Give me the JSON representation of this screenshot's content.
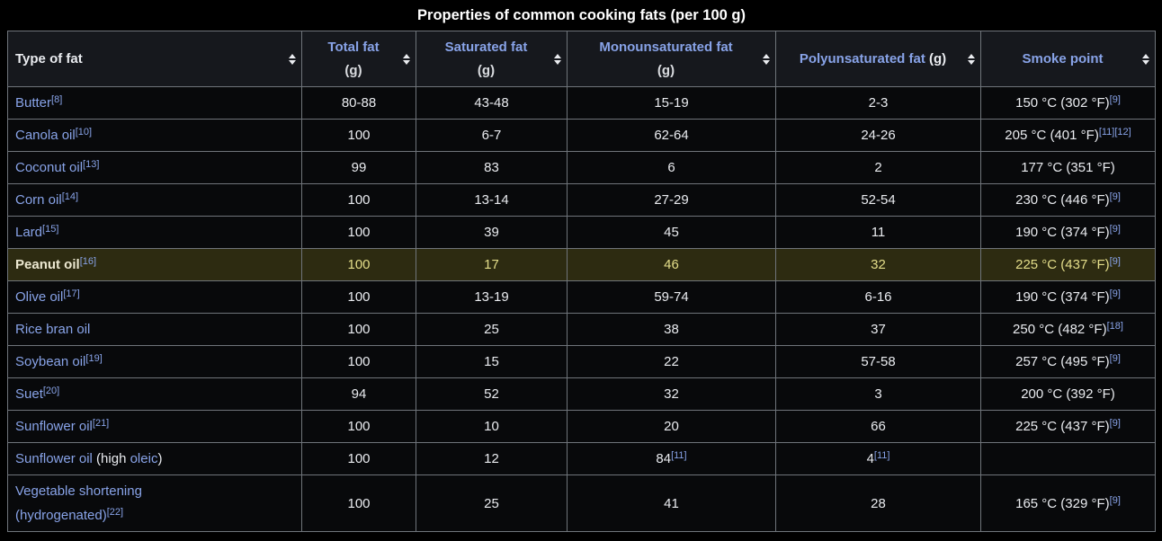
{
  "title": "Properties of common cooking fats (per 100 g)",
  "colors": {
    "page_bg": "#000000",
    "cell_bg": "#08090b",
    "header_bg": "#16181d",
    "border": "#6f747a",
    "text": "#eaecf0",
    "muted": "#dadce0",
    "link": "#88a3e8",
    "title": "#ffffff",
    "highlight_bg": "#2d2b11",
    "highlight_text": "#e4de8a",
    "highlight_label": "#ece8d1"
  },
  "icons": {
    "sort": "up-down-triangles"
  },
  "table": {
    "columns": [
      {
        "id": "type-of-fat",
        "align": "left",
        "segments": [
          {
            "t": "Type of fat",
            "s": "plain"
          }
        ]
      },
      {
        "id": "total-fat",
        "segments": [
          {
            "t": "Total fat",
            "s": "link"
          }
        ],
        "unit": "(g)"
      },
      {
        "id": "saturated-fat",
        "segments": [
          {
            "t": "Saturated fat",
            "s": "link"
          }
        ],
        "unit": "(g)"
      },
      {
        "id": "monounsaturated-fat",
        "segments": [
          {
            "t": "Monounsaturated fat",
            "s": "link"
          }
        ],
        "unit": "(g)"
      },
      {
        "id": "polyunsaturated-fat",
        "segments": [
          {
            "t": "Polyunsaturated fat",
            "s": "link"
          },
          {
            "t": " (g)",
            "s": "plain"
          }
        ]
      },
      {
        "id": "smoke-point",
        "segments": [
          {
            "t": "Smoke point",
            "s": "link"
          }
        ]
      }
    ],
    "rows": [
      {
        "highlight": false,
        "cells": [
          [
            {
              "t": "Butter",
              "s": "link"
            },
            {
              "t": "[8]",
              "s": "ref"
            }
          ],
          [
            {
              "t": "80-88",
              "s": "plain"
            }
          ],
          [
            {
              "t": "43-48",
              "s": "plain"
            }
          ],
          [
            {
              "t": "15-19",
              "s": "plain"
            }
          ],
          [
            {
              "t": "2-3",
              "s": "plain"
            }
          ],
          [
            {
              "t": "150 °C (302 °F)",
              "s": "plain"
            },
            {
              "t": "[9]",
              "s": "ref"
            }
          ]
        ]
      },
      {
        "highlight": false,
        "cells": [
          [
            {
              "t": "Canola oil",
              "s": "link"
            },
            {
              "t": "[10]",
              "s": "ref"
            }
          ],
          [
            {
              "t": "100",
              "s": "plain"
            }
          ],
          [
            {
              "t": "6-7",
              "s": "plain"
            }
          ],
          [
            {
              "t": "62-64",
              "s": "plain"
            }
          ],
          [
            {
              "t": "24-26",
              "s": "plain"
            }
          ],
          [
            {
              "t": "205 °C (401 °F)",
              "s": "plain"
            },
            {
              "t": "[11]",
              "s": "ref"
            },
            {
              "t": "[12]",
              "s": "ref"
            }
          ]
        ]
      },
      {
        "highlight": false,
        "cells": [
          [
            {
              "t": "Coconut oil",
              "s": "link"
            },
            {
              "t": "[13]",
              "s": "ref"
            }
          ],
          [
            {
              "t": "99",
              "s": "plain"
            }
          ],
          [
            {
              "t": "83",
              "s": "plain"
            }
          ],
          [
            {
              "t": "6",
              "s": "plain"
            }
          ],
          [
            {
              "t": "2",
              "s": "plain"
            }
          ],
          [
            {
              "t": "177 °C (351 °F)",
              "s": "plain"
            }
          ]
        ]
      },
      {
        "highlight": false,
        "cells": [
          [
            {
              "t": "Corn oil",
              "s": "link"
            },
            {
              "t": "[14]",
              "s": "ref"
            }
          ],
          [
            {
              "t": "100",
              "s": "plain"
            }
          ],
          [
            {
              "t": "13-14",
              "s": "plain"
            }
          ],
          [
            {
              "t": "27-29",
              "s": "plain"
            }
          ],
          [
            {
              "t": "52-54",
              "s": "plain"
            }
          ],
          [
            {
              "t": "230 °C (446 °F)",
              "s": "plain"
            },
            {
              "t": "[9]",
              "s": "ref"
            }
          ]
        ]
      },
      {
        "highlight": false,
        "cells": [
          [
            {
              "t": "Lard",
              "s": "link"
            },
            {
              "t": "[15]",
              "s": "ref"
            }
          ],
          [
            {
              "t": "100",
              "s": "plain"
            }
          ],
          [
            {
              "t": "39",
              "s": "plain"
            }
          ],
          [
            {
              "t": "45",
              "s": "plain"
            }
          ],
          [
            {
              "t": "11",
              "s": "plain"
            }
          ],
          [
            {
              "t": "190 °C (374 °F)",
              "s": "plain"
            },
            {
              "t": "[9]",
              "s": "ref"
            }
          ]
        ]
      },
      {
        "highlight": true,
        "cells": [
          [
            {
              "t": "Peanut oil",
              "s": "bold"
            },
            {
              "t": "[16]",
              "s": "ref"
            }
          ],
          [
            {
              "t": "100",
              "s": "plain"
            }
          ],
          [
            {
              "t": "17",
              "s": "plain"
            }
          ],
          [
            {
              "t": "46",
              "s": "plain"
            }
          ],
          [
            {
              "t": "32",
              "s": "plain"
            }
          ],
          [
            {
              "t": "225 °C (437 °F)",
              "s": "plain"
            },
            {
              "t": "[9]",
              "s": "ref"
            }
          ]
        ]
      },
      {
        "highlight": false,
        "cells": [
          [
            {
              "t": "Olive oil",
              "s": "link"
            },
            {
              "t": "[17]",
              "s": "ref"
            }
          ],
          [
            {
              "t": "100",
              "s": "plain"
            }
          ],
          [
            {
              "t": "13-19",
              "s": "plain"
            }
          ],
          [
            {
              "t": "59-74",
              "s": "plain"
            }
          ],
          [
            {
              "t": "6-16",
              "s": "plain"
            }
          ],
          [
            {
              "t": "190 °C (374 °F)",
              "s": "plain"
            },
            {
              "t": "[9]",
              "s": "ref"
            }
          ]
        ]
      },
      {
        "highlight": false,
        "cells": [
          [
            {
              "t": "Rice bran oil",
              "s": "link"
            }
          ],
          [
            {
              "t": "100",
              "s": "plain"
            }
          ],
          [
            {
              "t": "25",
              "s": "plain"
            }
          ],
          [
            {
              "t": "38",
              "s": "plain"
            }
          ],
          [
            {
              "t": "37",
              "s": "plain"
            }
          ],
          [
            {
              "t": "250 °C (482 °F)",
              "s": "plain"
            },
            {
              "t": "[18]",
              "s": "ref"
            }
          ]
        ]
      },
      {
        "highlight": false,
        "cells": [
          [
            {
              "t": "Soybean oil",
              "s": "link"
            },
            {
              "t": "[19]",
              "s": "ref"
            }
          ],
          [
            {
              "t": "100",
              "s": "plain"
            }
          ],
          [
            {
              "t": "15",
              "s": "plain"
            }
          ],
          [
            {
              "t": "22",
              "s": "plain"
            }
          ],
          [
            {
              "t": "57-58",
              "s": "plain"
            }
          ],
          [
            {
              "t": "257 °C (495 °F)",
              "s": "plain"
            },
            {
              "t": "[9]",
              "s": "ref"
            }
          ]
        ]
      },
      {
        "highlight": false,
        "cells": [
          [
            {
              "t": "Suet",
              "s": "link"
            },
            {
              "t": "[20]",
              "s": "ref"
            }
          ],
          [
            {
              "t": "94",
              "s": "plain"
            }
          ],
          [
            {
              "t": "52",
              "s": "plain"
            }
          ],
          [
            {
              "t": "32",
              "s": "plain"
            }
          ],
          [
            {
              "t": "3",
              "s": "plain"
            }
          ],
          [
            {
              "t": "200 °C (392 °F)",
              "s": "plain"
            }
          ]
        ]
      },
      {
        "highlight": false,
        "cells": [
          [
            {
              "t": "Sunflower oil",
              "s": "link"
            },
            {
              "t": "[21]",
              "s": "ref"
            }
          ],
          [
            {
              "t": "100",
              "s": "plain"
            }
          ],
          [
            {
              "t": "10",
              "s": "plain"
            }
          ],
          [
            {
              "t": "20",
              "s": "plain"
            }
          ],
          [
            {
              "t": "66",
              "s": "plain"
            }
          ],
          [
            {
              "t": "225 °C (437 °F)",
              "s": "plain"
            },
            {
              "t": "[9]",
              "s": "ref"
            }
          ]
        ]
      },
      {
        "highlight": false,
        "cells": [
          [
            {
              "t": "Sunflower oil",
              "s": "link"
            },
            {
              "t": " (high ",
              "s": "plain"
            },
            {
              "t": "oleic",
              "s": "link"
            },
            {
              "t": ")",
              "s": "plain"
            }
          ],
          [
            {
              "t": "100",
              "s": "plain"
            }
          ],
          [
            {
              "t": "12",
              "s": "plain"
            }
          ],
          [
            {
              "t": "84",
              "s": "plain"
            },
            {
              "t": "[11]",
              "s": "ref"
            }
          ],
          [
            {
              "t": "4",
              "s": "plain"
            },
            {
              "t": "[11]",
              "s": "ref"
            }
          ],
          []
        ]
      },
      {
        "highlight": false,
        "cells": [
          [
            {
              "t": "Vegetable shortening\n(hydrogenated)",
              "s": "link"
            },
            {
              "t": "[22]",
              "s": "ref"
            }
          ],
          [
            {
              "t": "100",
              "s": "plain"
            }
          ],
          [
            {
              "t": "25",
              "s": "plain"
            }
          ],
          [
            {
              "t": "41",
              "s": "plain"
            }
          ],
          [
            {
              "t": "28",
              "s": "plain"
            }
          ],
          [
            {
              "t": "165 °C (329 °F)",
              "s": "plain"
            },
            {
              "t": "[9]",
              "s": "ref"
            }
          ]
        ]
      }
    ]
  }
}
